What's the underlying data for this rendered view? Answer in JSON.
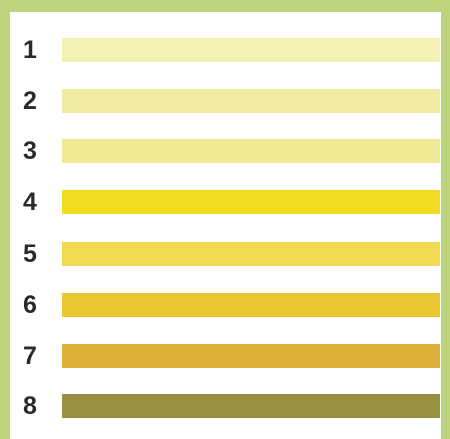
{
  "swatches": [
    {
      "label": "1",
      "color": "#f5f0b4"
    },
    {
      "label": "2",
      "color": "#f1eb9f"
    },
    {
      "label": "3",
      "color": "#efe993"
    },
    {
      "label": "4",
      "color": "#f1dd1f"
    },
    {
      "label": "5",
      "color": "#f1da52"
    },
    {
      "label": "6",
      "color": "#e8c731"
    },
    {
      "label": "7",
      "color": "#ddb03a"
    },
    {
      "label": "8",
      "color": "#969040"
    }
  ]
}
